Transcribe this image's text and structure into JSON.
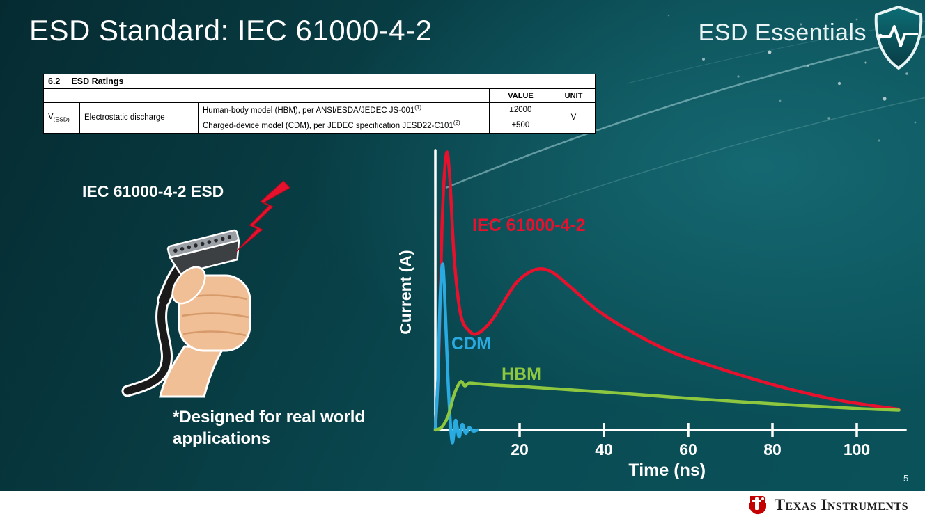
{
  "slide": {
    "title": "ESD Standard: IEC 61000-4-2",
    "badge_text": "ESD Essentials",
    "page_number": "5",
    "footer_brand": "Texas Instruments"
  },
  "colors": {
    "bolt_red": "#e8112d",
    "ti_red": "#c40000",
    "background_teal": "#0a4b53"
  },
  "ratings_table": {
    "section_number": "6.2",
    "section_title": "ESD Ratings",
    "value_header": "VALUE",
    "unit_header": "UNIT",
    "symbol": "V",
    "symbol_sub": "(ESD)",
    "parameter": "Electrostatic discharge",
    "row_hbm": {
      "text": "Human-body model (HBM), per ANSI/ESDA/JEDEC JS-001",
      "sup": "(1)",
      "value": "±2000"
    },
    "row_cdm": {
      "text": "Charged-device model (CDM), per JEDEC specification JESD22-C101",
      "sup": "(2)",
      "value": "±500"
    },
    "unit": "V"
  },
  "illustration": {
    "caption": "IEC 61000-4-2 ESD",
    "note": "*Designed for real world\napplications"
  },
  "chart_data": {
    "type": "line",
    "title": "",
    "xlabel": "Time (ns)",
    "ylabel": "Current (A)",
    "x_ticks": [
      20,
      40,
      60,
      80,
      100
    ],
    "xlim": [
      0,
      110
    ],
    "ylim": [
      -0.05,
      1.05
    ],
    "grid": false,
    "legend": "inline-labels",
    "y_axis_tick_labels_shown": false,
    "series": [
      {
        "name": "IEC 61000-4-2",
        "color": "#e8112d",
        "x": [
          0,
          0.8,
          1.6,
          2.6,
          3.4,
          4.5,
          6,
          8,
          10,
          13,
          16,
          19,
          22,
          25,
          28,
          32,
          38,
          45,
          55,
          65,
          80,
          95,
          110
        ],
        "y": [
          0,
          0.25,
          0.75,
          1.0,
          0.92,
          0.62,
          0.42,
          0.36,
          0.35,
          0.39,
          0.46,
          0.53,
          0.57,
          0.585,
          0.57,
          0.52,
          0.44,
          0.37,
          0.29,
          0.235,
          0.165,
          0.11,
          0.075
        ]
      },
      {
        "name": "CDM",
        "color": "#29abe2",
        "x": [
          0,
          0.6,
          1.2,
          1.8,
          2.4,
          3.2,
          4,
          4.8,
          5.6,
          6.4,
          7.2,
          8,
          9,
          10
        ],
        "y": [
          0,
          0.18,
          0.5,
          0.6,
          0.42,
          0.12,
          -0.045,
          0.035,
          -0.025,
          0.02,
          -0.012,
          0.008,
          -0.004,
          0
        ]
      },
      {
        "name": "HBM",
        "color": "#8dc63f",
        "x": [
          0,
          1.5,
          3,
          4.5,
          6,
          7,
          8,
          10,
          14,
          20,
          30,
          45,
          60,
          80,
          100,
          110
        ],
        "y": [
          0,
          0.01,
          0.05,
          0.13,
          0.175,
          0.16,
          0.17,
          0.168,
          0.163,
          0.158,
          0.148,
          0.132,
          0.115,
          0.095,
          0.078,
          0.072
        ]
      }
    ]
  }
}
